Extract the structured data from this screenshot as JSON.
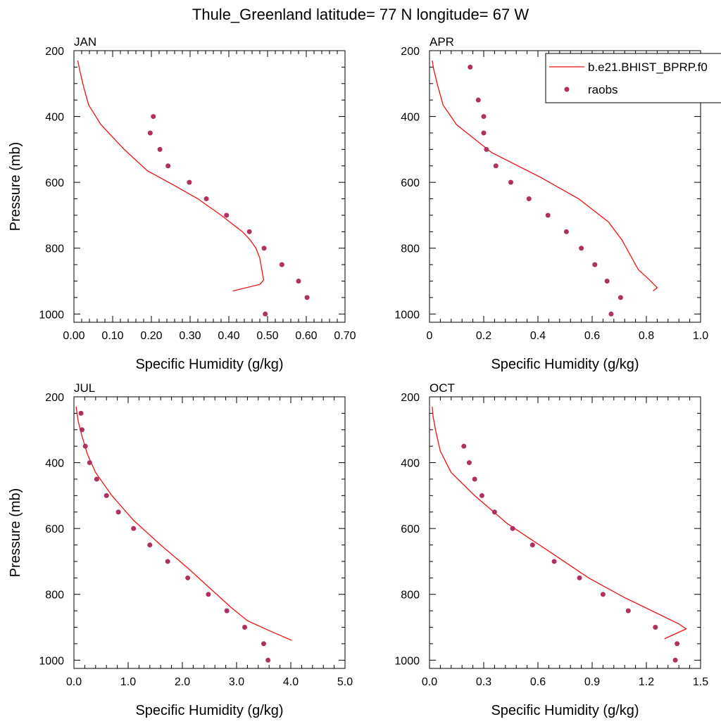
{
  "title": "Thule_Greenland  latitude= 77 N longitude= 67 W",
  "colors": {
    "model": "#ee1111",
    "obs": "#b03060",
    "axis": "#000000"
  },
  "legend": {
    "model_label": "b.e21.BHIST_BPRP.f0",
    "obs_label": "raobs",
    "placement": "top-right of APR panel"
  },
  "chart_data": [
    {
      "type": "line",
      "panel_title": "JAN",
      "xlabel": "Specific Humidity (g/kg)",
      "ylabel": "Pressure (mb)",
      "xlim": [
        0,
        0.7
      ],
      "ylim": [
        200,
        1025
      ],
      "y_inverted": true,
      "x_ticks": [
        "0.00",
        "0.10",
        "0.20",
        "0.30",
        "0.40",
        "0.50",
        "0.60",
        "0.70"
      ],
      "y_ticks": [
        "200",
        "400",
        "600",
        "800",
        "1000"
      ],
      "grid": false,
      "series": [
        {
          "kind": "line",
          "points": [
            [
              0.41,
              930
            ],
            [
              0.48,
              910
            ],
            [
              0.49,
              897
            ],
            [
              0.485,
              865
            ],
            [
              0.48,
              830
            ],
            [
              0.47,
              800
            ],
            [
              0.455,
              775
            ],
            [
              0.435,
              750
            ],
            [
              0.38,
              700
            ],
            [
              0.32,
              650
            ],
            [
              0.26,
              610
            ],
            [
              0.19,
              565
            ],
            [
              0.13,
              500
            ],
            [
              0.07,
              425
            ],
            [
              0.038,
              365
            ],
            [
              0.025,
              310
            ],
            [
              0.015,
              260
            ],
            [
              0.01,
              230
            ]
          ]
        },
        {
          "kind": "scatter",
          "points": [
            [
              0.205,
              400
            ],
            [
              0.197,
              450
            ],
            [
              0.222,
              500
            ],
            [
              0.243,
              550
            ],
            [
              0.298,
              600
            ],
            [
              0.342,
              650
            ],
            [
              0.394,
              700
            ],
            [
              0.453,
              750
            ],
            [
              0.491,
              800
            ],
            [
              0.537,
              850
            ],
            [
              0.58,
              900
            ],
            [
              0.602,
              950
            ],
            [
              0.494,
              1000
            ]
          ]
        }
      ]
    },
    {
      "type": "line",
      "panel_title": "APR",
      "xlabel": "Specific Humidity (g/kg)",
      "ylabel": "",
      "xlim": [
        0,
        1.0
      ],
      "ylim": [
        200,
        1025
      ],
      "y_inverted": true,
      "x_ticks": [
        "0",
        "0.2",
        "0.4",
        "0.6",
        "0.8",
        "1.0"
      ],
      "y_ticks": [
        "200",
        "400",
        "600",
        "800",
        "1000"
      ],
      "grid": false,
      "series": [
        {
          "kind": "line",
          "points": [
            [
              0.825,
              930
            ],
            [
              0.84,
              920
            ],
            [
              0.81,
              895
            ],
            [
              0.77,
              865
            ],
            [
              0.74,
              820
            ],
            [
              0.71,
              775
            ],
            [
              0.66,
              720
            ],
            [
              0.55,
              650
            ],
            [
              0.41,
              585
            ],
            [
              0.23,
              510
            ],
            [
              0.1,
              425
            ],
            [
              0.05,
              365
            ],
            [
              0.03,
              305
            ],
            [
              0.015,
              255
            ],
            [
              0.01,
              230
            ]
          ]
        },
        {
          "kind": "scatter",
          "points": [
            [
              0.15,
              250
            ],
            [
              0.18,
              350
            ],
            [
              0.2,
              400
            ],
            [
              0.2,
              450
            ],
            [
              0.21,
              500
            ],
            [
              0.245,
              550
            ],
            [
              0.3,
              600
            ],
            [
              0.367,
              650
            ],
            [
              0.437,
              700
            ],
            [
              0.505,
              750
            ],
            [
              0.56,
              800
            ],
            [
              0.61,
              850
            ],
            [
              0.655,
              900
            ],
            [
              0.705,
              950
            ],
            [
              0.67,
              1000
            ]
          ]
        }
      ]
    },
    {
      "type": "line",
      "panel_title": "JUL",
      "xlabel": "Specific Humidity (g/kg)",
      "ylabel": "Pressure (mb)",
      "xlim": [
        0,
        5.0
      ],
      "ylim": [
        200,
        1025
      ],
      "y_inverted": true,
      "x_ticks": [
        "0.0",
        "1.0",
        "2.0",
        "3.0",
        "4.0",
        "5.0"
      ],
      "y_ticks": [
        "200",
        "400",
        "600",
        "800",
        "1000"
      ],
      "grid": false,
      "series": [
        {
          "kind": "line",
          "points": [
            [
              4.02,
              940
            ],
            [
              3.6,
              910
            ],
            [
              3.2,
              880
            ],
            [
              2.9,
              840
            ],
            [
              2.5,
              780
            ],
            [
              2.1,
              720
            ],
            [
              1.6,
              650
            ],
            [
              1.1,
              575
            ],
            [
              0.7,
              500
            ],
            [
              0.4,
              430
            ],
            [
              0.25,
              375
            ],
            [
              0.15,
              320
            ],
            [
              0.08,
              275
            ],
            [
              0.04,
              230
            ]
          ]
        },
        {
          "kind": "scatter",
          "points": [
            [
              0.13,
              250
            ],
            [
              0.15,
              300
            ],
            [
              0.21,
              350
            ],
            [
              0.29,
              400
            ],
            [
              0.42,
              450
            ],
            [
              0.6,
              500
            ],
            [
              0.82,
              550
            ],
            [
              1.1,
              600
            ],
            [
              1.4,
              650
            ],
            [
              1.73,
              700
            ],
            [
              2.1,
              750
            ],
            [
              2.48,
              800
            ],
            [
              2.82,
              850
            ],
            [
              3.15,
              900
            ],
            [
              3.5,
              950
            ],
            [
              3.58,
              1000
            ]
          ]
        }
      ]
    },
    {
      "type": "line",
      "panel_title": "OCT",
      "xlabel": "Specific Humidity (g/kg)",
      "ylabel": "",
      "xlim": [
        0,
        1.5
      ],
      "ylim": [
        200,
        1025
      ],
      "y_inverted": true,
      "x_ticks": [
        "0.0",
        "0.3",
        "0.6",
        "0.9",
        "1.2",
        "1.5"
      ],
      "y_ticks": [
        "200",
        "400",
        "600",
        "800",
        "1000"
      ],
      "grid": false,
      "series": [
        {
          "kind": "line",
          "points": [
            [
              1.3,
              935
            ],
            [
              1.42,
              905
            ],
            [
              1.38,
              890
            ],
            [
              1.25,
              855
            ],
            [
              1.08,
              810
            ],
            [
              0.88,
              750
            ],
            [
              0.65,
              665
            ],
            [
              0.43,
              585
            ],
            [
              0.25,
              500
            ],
            [
              0.12,
              430
            ],
            [
              0.06,
              365
            ],
            [
              0.035,
              305
            ],
            [
              0.02,
              260
            ],
            [
              0.015,
              230
            ]
          ]
        },
        {
          "kind": "scatter",
          "points": [
            [
              0.19,
              350
            ],
            [
              0.22,
              400
            ],
            [
              0.25,
              450
            ],
            [
              0.29,
              500
            ],
            [
              0.36,
              550
            ],
            [
              0.46,
              600
            ],
            [
              0.57,
              650
            ],
            [
              0.69,
              700
            ],
            [
              0.83,
              750
            ],
            [
              0.96,
              800
            ],
            [
              1.1,
              850
            ],
            [
              1.25,
              900
            ],
            [
              1.37,
              950
            ],
            [
              1.36,
              1000
            ]
          ]
        }
      ]
    }
  ]
}
